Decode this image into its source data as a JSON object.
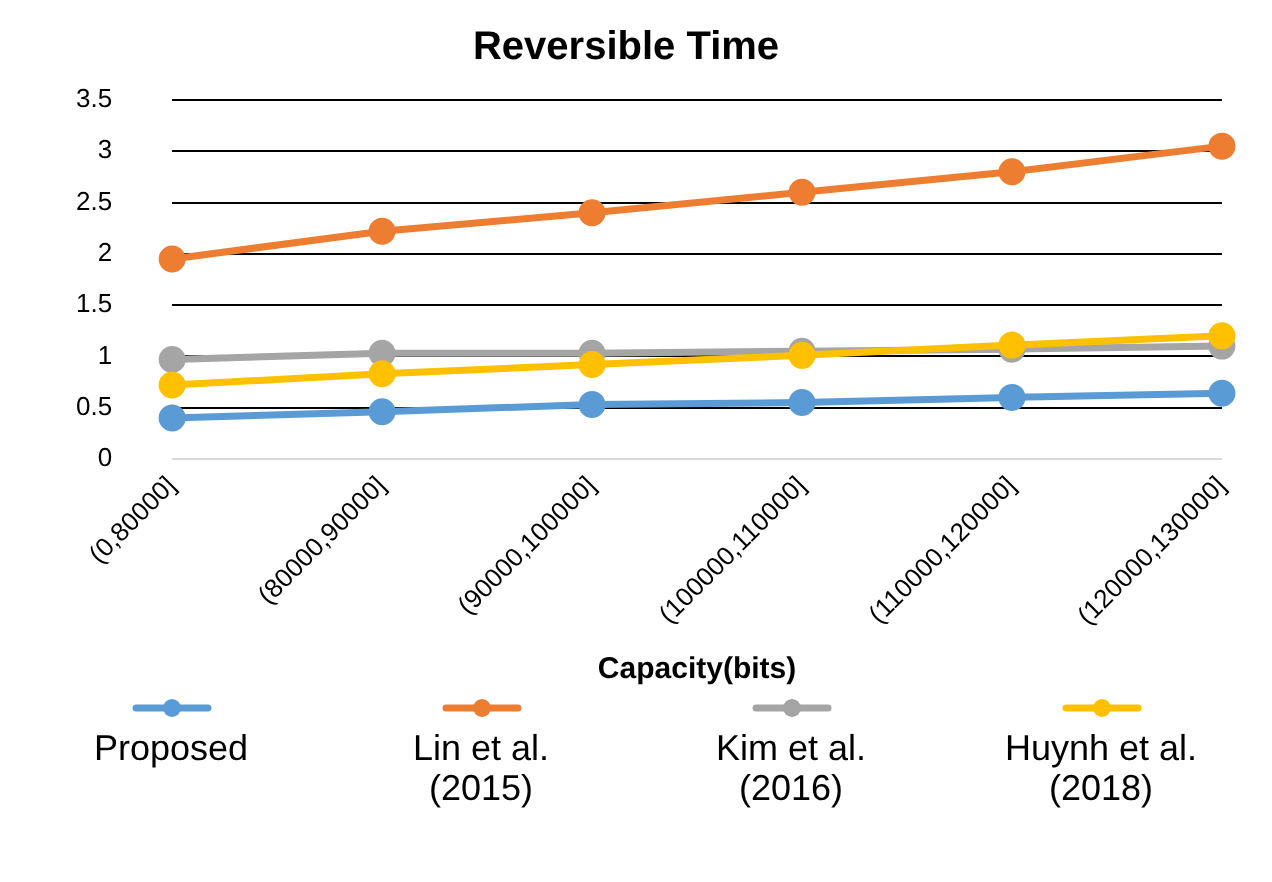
{
  "chart_data": {
    "type": "line",
    "title": "Reversible Time",
    "xlabel": "Capacity(bits)",
    "categories": [
      "(0,80000]",
      "(80000,90000]",
      "(90000,100000]",
      "(100000,110000]",
      "(110000,120000]",
      "(120000,130000]"
    ],
    "series": [
      {
        "name": "Proposed",
        "color": "#5b9bd5",
        "values": [
          0.4,
          0.46,
          0.53,
          0.55,
          0.6,
          0.64
        ]
      },
      {
        "name": "Lin et al. (2015)",
        "color": "#ed7d31",
        "values": [
          1.95,
          2.22,
          2.4,
          2.6,
          2.8,
          3.05
        ]
      },
      {
        "name": "Kim et al. (2016)",
        "color": "#a5a5a5",
        "values": [
          0.97,
          1.03,
          1.03,
          1.05,
          1.07,
          1.1
        ]
      },
      {
        "name": "Huynh et al. (2018)",
        "color": "#ffc000",
        "values": [
          0.72,
          0.83,
          0.92,
          1.01,
          1.11,
          1.2
        ]
      }
    ],
    "ylim": [
      0,
      3.5
    ],
    "yticks": [
      0,
      0.5,
      1,
      1.5,
      2,
      2.5,
      3,
      3.5
    ],
    "grid": "y",
    "legend": "bottom",
    "marker": "circle",
    "line_style": "solid"
  }
}
